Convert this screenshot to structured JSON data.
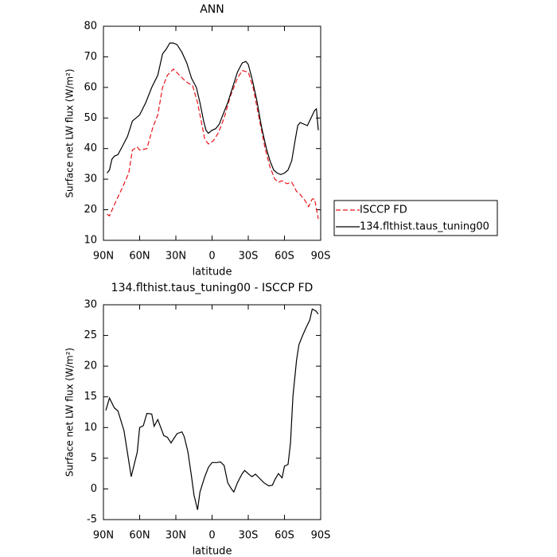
{
  "chart_data": [
    {
      "type": "line",
      "title": "ANN",
      "xlabel": "latitude",
      "ylabel": "Surface net LW flux (W/m²)",
      "xlim": [
        90,
        -90
      ],
      "ylim": [
        10,
        80
      ],
      "xticks": [
        {
          "value": 90,
          "label": "90N"
        },
        {
          "value": 60,
          "label": "60N"
        },
        {
          "value": 30,
          "label": "30N"
        },
        0,
        {
          "value": -30,
          "label": "30S"
        },
        {
          "value": -60,
          "label": "60S"
        },
        {
          "value": -90,
          "label": "90S"
        }
      ],
      "yticks": [
        10,
        20,
        30,
        40,
        50,
        60,
        70,
        80
      ],
      "legend": "right",
      "series": [
        {
          "name": "ISCCP FD",
          "color": "#e8141a",
          "linestyle": "dashed",
          "x": [
            87,
            85,
            80,
            74,
            69,
            66,
            62,
            60,
            54,
            49,
            45,
            41,
            37,
            32,
            27,
            22,
            16,
            12,
            8,
            6,
            3,
            -1,
            -5,
            -10,
            -15,
            -21,
            -25,
            -30,
            -34,
            -39,
            -44,
            -48,
            -52,
            -55,
            -58,
            -62,
            -66,
            -70,
            -73,
            -77,
            -80,
            -83,
            -85,
            -88
          ],
          "values": [
            18.5,
            18,
            22.5,
            27.5,
            32,
            39.5,
            40.5,
            39.5,
            40,
            47,
            51,
            60,
            64,
            66,
            64,
            62,
            60.5,
            55,
            47,
            43,
            41.5,
            42.5,
            45,
            50,
            57,
            63,
            65.5,
            65,
            60,
            50,
            40,
            34,
            30,
            29,
            29.5,
            28.5,
            29,
            26,
            25,
            23,
            21,
            23.5,
            23.5,
            17
          ]
        },
        {
          "name": "134.flthist.taus_tuning00",
          "color": "#000000",
          "linestyle": "solid",
          "x": [
            87,
            85,
            83,
            81,
            78,
            74,
            70,
            66,
            63,
            60,
            55,
            50,
            45,
            41,
            38,
            35,
            32,
            29,
            25,
            21,
            17,
            13,
            10,
            7,
            5,
            3,
            0,
            -3,
            -6,
            -9,
            -13,
            -17,
            -21,
            -25,
            -28,
            -30,
            -33,
            -37,
            -41,
            -45,
            -48,
            -51,
            -54,
            -57,
            -60,
            -63,
            -66,
            -69,
            -71,
            -73,
            -76,
            -79,
            -82,
            -85,
            -86.5,
            -88
          ],
          "values": [
            32,
            33,
            36.5,
            37.5,
            38,
            41,
            44,
            49,
            50,
            51,
            55,
            60,
            64,
            71,
            72.5,
            74.5,
            74.5,
            74,
            71.5,
            68,
            63,
            60,
            55,
            49,
            46,
            45,
            46,
            46.5,
            48,
            51,
            55,
            60,
            65,
            68,
            68.5,
            67.5,
            63,
            56,
            47,
            40,
            36,
            33,
            32,
            31.5,
            32,
            33,
            36,
            43,
            47.5,
            48.5,
            48,
            47.5,
            50,
            52.5,
            53,
            46
          ]
        }
      ]
    },
    {
      "type": "line",
      "title": "134.flthist.taus_tuning00 - ISCCP FD",
      "xlabel": "latitude",
      "ylabel": "Surface net LW flux (W/m²)",
      "xlim": [
        90,
        -90
      ],
      "ylim": [
        -5,
        30
      ],
      "xticks": [
        {
          "value": 90,
          "label": "90N"
        },
        {
          "value": 60,
          "label": "60N"
        },
        {
          "value": 30,
          "label": "30N"
        },
        0,
        {
          "value": -30,
          "label": "30S"
        },
        {
          "value": -60,
          "label": "60S"
        },
        {
          "value": -90,
          "label": "90S"
        }
      ],
      "yticks": [
        -5,
        0,
        5,
        10,
        15,
        20,
        25,
        30
      ],
      "color": "#000000",
      "x": [
        88,
        85,
        81,
        78,
        73,
        67,
        62,
        60,
        57,
        54,
        50,
        48,
        45,
        40,
        37,
        34,
        29,
        25,
        23,
        20,
        17,
        15,
        12,
        10,
        6,
        3,
        0,
        -4,
        -7,
        -10,
        -13,
        -16,
        -18,
        -21,
        -25,
        -27,
        -31,
        -33,
        -36,
        -39,
        -43,
        -47,
        -50,
        -52,
        -55,
        -58,
        -60,
        -63,
        -65,
        -67,
        -70,
        -72,
        -75,
        -78,
        -81,
        -83,
        -86,
        -88
      ],
      "values": [
        12.8,
        14.8,
        13.2,
        12.7,
        9.5,
        2,
        6,
        10,
        10.3,
        12.3,
        12.2,
        10.2,
        11.3,
        8.7,
        8.4,
        7.5,
        9,
        9.3,
        8.5,
        6,
        2,
        -1,
        -3.4,
        -0.5,
        2,
        3.5,
        4.3,
        4.3,
        4.4,
        3.8,
        1,
        0,
        -0.5,
        1,
        2.5,
        3,
        2.3,
        2,
        2.4,
        1.8,
        1,
        0.5,
        0.6,
        1.5,
        2.5,
        1.8,
        3.7,
        4,
        7.5,
        15,
        21,
        23.5,
        25,
        26.3,
        27.5,
        29.3,
        29,
        28.5
      ]
    }
  ]
}
